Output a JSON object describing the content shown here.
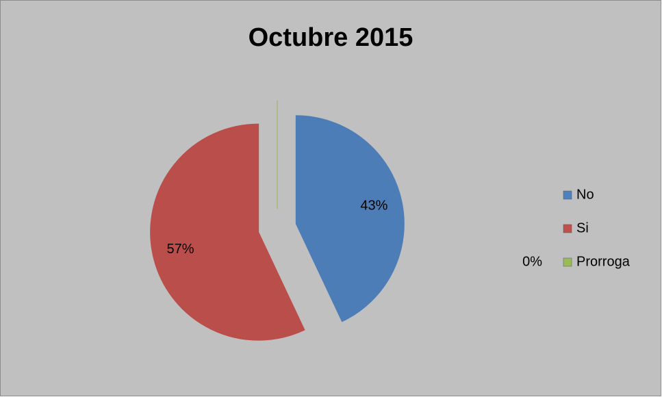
{
  "chart_data": {
    "type": "pie",
    "title": "Octubre 2015",
    "categories": [
      "No",
      "Si",
      "Prorroga"
    ],
    "values": [
      43,
      57,
      0
    ],
    "value_labels": [
      "43%",
      "57%",
      "0%"
    ],
    "colors": [
      "#4f81bd",
      "#c0504d",
      "#9bbb59"
    ],
    "legend": "right"
  }
}
